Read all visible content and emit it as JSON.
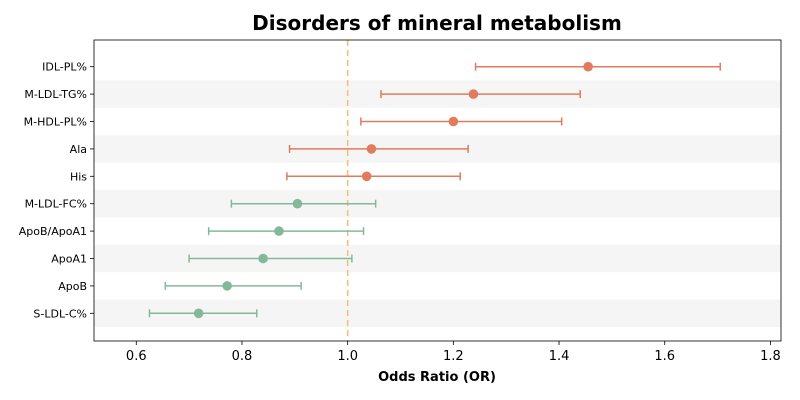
{
  "chart_data": {
    "type": "forest",
    "title": "Disorders of mineral metabolism",
    "xlabel": "Odds Ratio (OR)",
    "ylabel": "",
    "xlim": [
      0.52,
      1.82
    ],
    "xticks": [
      0.6,
      0.8,
      1.0,
      1.2,
      1.4,
      1.6,
      1.8
    ],
    "xtick_labels": [
      "0.6",
      "0.8",
      "1.0",
      "1.2",
      "1.4",
      "1.6",
      "1.8"
    ],
    "reference_line": 1.0,
    "reference_color": "#f4c07a",
    "colors": {
      "risk": "#e07b5e",
      "protective": "#84b89b"
    },
    "band_color": "#f5f5f5",
    "grid": false,
    "rows": [
      {
        "label": "IDL-PL%",
        "or": 1.455,
        "lower": 1.242,
        "upper": 1.705,
        "group": "risk"
      },
      {
        "label": "M-LDL-TG%",
        "or": 1.238,
        "lower": 1.063,
        "upper": 1.44,
        "group": "risk"
      },
      {
        "label": "M-HDL-PL%",
        "or": 1.2,
        "lower": 1.025,
        "upper": 1.405,
        "group": "risk"
      },
      {
        "label": "Ala",
        "or": 1.045,
        "lower": 0.89,
        "upper": 1.228,
        "group": "risk"
      },
      {
        "label": "His",
        "or": 1.036,
        "lower": 0.885,
        "upper": 1.213,
        "group": "risk"
      },
      {
        "label": "M-LDL-FC%",
        "or": 0.905,
        "lower": 0.78,
        "upper": 1.053,
        "group": "protective"
      },
      {
        "label": "ApoB/ApoA1",
        "or": 0.87,
        "lower": 0.737,
        "upper": 1.03,
        "group": "protective"
      },
      {
        "label": "ApoA1",
        "or": 0.84,
        "lower": 0.7,
        "upper": 1.008,
        "group": "protective"
      },
      {
        "label": "ApoB",
        "or": 0.772,
        "lower": 0.655,
        "upper": 0.912,
        "group": "protective"
      },
      {
        "label": "S-LDL-C%",
        "or": 0.718,
        "lower": 0.625,
        "upper": 0.828,
        "group": "protective"
      }
    ]
  }
}
